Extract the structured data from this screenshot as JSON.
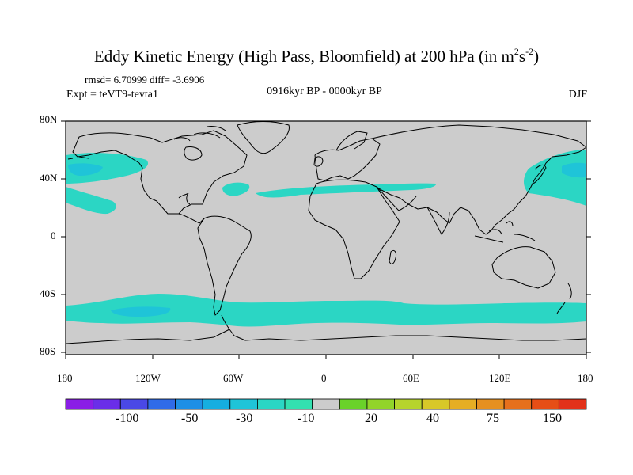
{
  "title": "Eddy Kinetic Energy (High Pass, Bloomfield) at 200 hPa (in m",
  "title_units": {
    "sup1": "2",
    "mid": "s",
    "sup2": "-2",
    "end": ")"
  },
  "stats_text": "rmsd= 6.70999 diff= -3.6906",
  "experiment": "Expt = teVT9-tevta1",
  "period": "0916kyr BP - 0000kyr BP",
  "season": "DJF",
  "lat_labels": [
    "80N",
    "40N",
    "0",
    "40S",
    "80S"
  ],
  "lon_labels": [
    "180",
    "120W",
    "60W",
    "0",
    "60E",
    "120E",
    "180"
  ],
  "colorbar": {
    "colors": [
      "#8a1ee6",
      "#6a2ee8",
      "#4a48e6",
      "#2f6be8",
      "#1e8fe6",
      "#16aee0",
      "#1fc4d8",
      "#2bd6c4",
      "#33e0b0",
      "#cccccc",
      "#6ad22a",
      "#92d42a",
      "#b6d42c",
      "#d8c828",
      "#e6ae24",
      "#e69020",
      "#e6701c",
      "#e64e16",
      "#e2321a"
    ],
    "labels": [
      "-100",
      "-50",
      "-30",
      "-10",
      "20",
      "40",
      "75",
      "150"
    ]
  },
  "map_colors": {
    "ocean_land_fill": "#cccccc",
    "anomaly_fill": "#2bd6c4",
    "coastline": "#000000"
  }
}
